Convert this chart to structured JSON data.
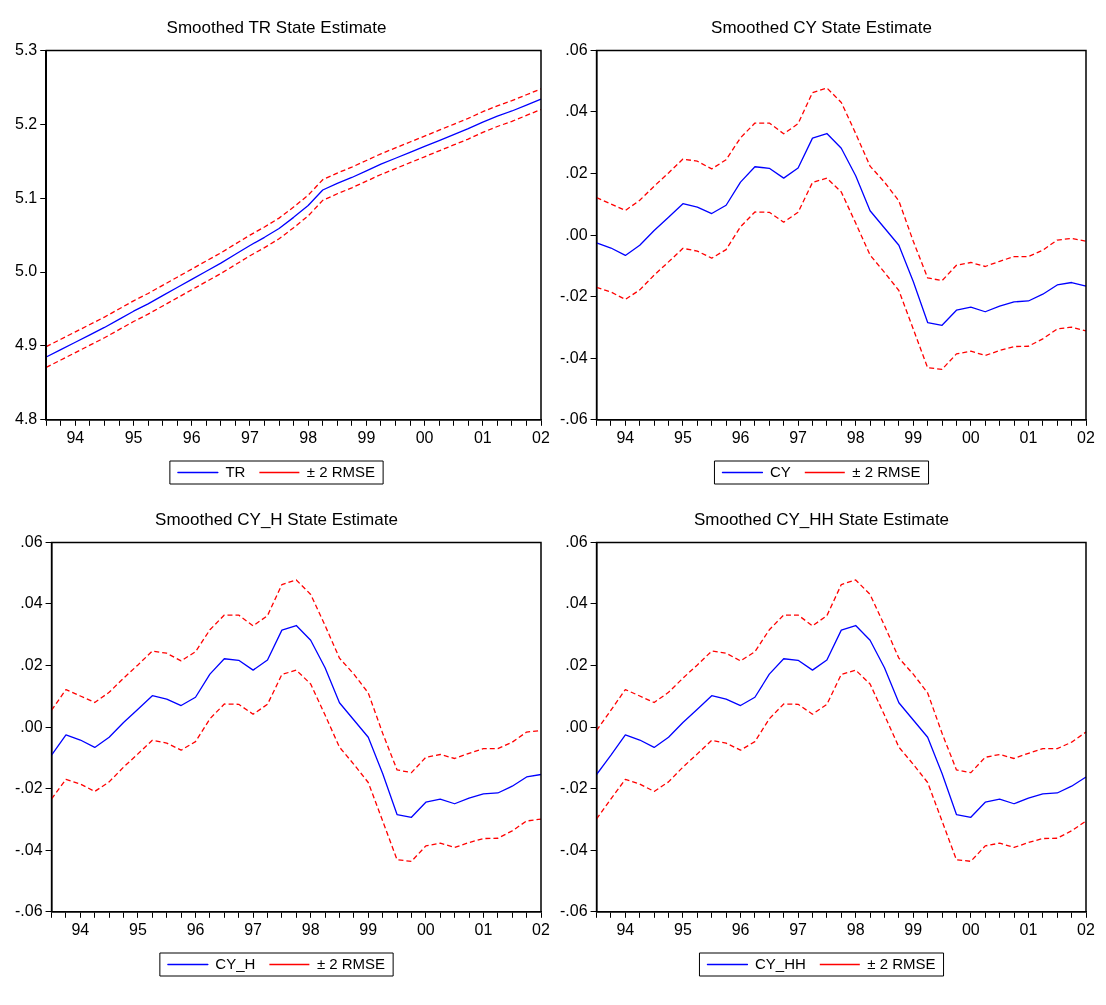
{
  "chart_data": [
    {
      "type": "line",
      "title": "Smoothed TR State Estimate",
      "categories": [
        null,
        null,
        "94",
        null,
        null,
        null,
        "95",
        null,
        null,
        null,
        "96",
        null,
        null,
        null,
        "97",
        null,
        null,
        null,
        "98",
        null,
        null,
        null,
        "99",
        null,
        null,
        null,
        "00",
        null,
        null,
        null,
        "01",
        null,
        null,
        null,
        "02"
      ],
      "series": [
        {
          "name": "TR",
          "color": "#0000ff",
          "line_style": "solid",
          "values": [
            4.885,
            4.895,
            4.905,
            4.915,
            4.925,
            4.936,
            4.947,
            4.957,
            4.968,
            4.979,
            4.99,
            5.001,
            5.012,
            5.024,
            5.036,
            5.047,
            5.059,
            5.074,
            5.09,
            5.111,
            5.12,
            5.128,
            5.137,
            5.146,
            5.154,
            5.162,
            5.17,
            5.178,
            5.186,
            5.194,
            5.203,
            5.211,
            5.218,
            5.226,
            5.234
          ]
        },
        {
          "name": "± 2 RMSE",
          "color": "#ff0000",
          "line_style": "dashed",
          "values": [
            4.899,
            4.909,
            4.919,
            4.929,
            4.939,
            4.95,
            4.961,
            4.971,
            4.982,
            4.993,
            5.004,
            5.015,
            5.026,
            5.038,
            5.05,
            5.061,
            5.073,
            5.088,
            5.104,
            5.125,
            5.134,
            5.142,
            5.151,
            5.16,
            5.168,
            5.176,
            5.184,
            5.192,
            5.2,
            5.208,
            5.217,
            5.225,
            5.232,
            5.24,
            5.248
          ]
        },
        {
          "color": "#ff0000",
          "line_style": "dashed",
          "values": [
            4.871,
            4.881,
            4.891,
            4.901,
            4.911,
            4.922,
            4.933,
            4.943,
            4.954,
            4.965,
            4.976,
            4.987,
            4.998,
            5.01,
            5.022,
            5.033,
            5.045,
            5.06,
            5.076,
            5.097,
            5.106,
            5.114,
            5.123,
            5.132,
            5.14,
            5.148,
            5.156,
            5.164,
            5.172,
            5.18,
            5.189,
            5.197,
            5.204,
            5.212,
            5.22
          ]
        }
      ],
      "ylim": [
        4.8,
        5.3
      ],
      "yticks": [
        {
          "value": 4.8,
          "label": "4.8"
        },
        {
          "value": 4.9,
          "label": "4.9"
        },
        {
          "value": 5,
          "label": "5.0"
        },
        {
          "value": 5.1,
          "label": "5.1"
        },
        {
          "value": 5.2,
          "label": "5.2"
        },
        {
          "value": 5.3,
          "label": "5.3"
        }
      ],
      "grid": false,
      "legend": "bottom",
      "marker": "none"
    },
    {
      "type": "line",
      "title": "Smoothed CY State Estimate",
      "categories": [
        null,
        null,
        "94",
        null,
        null,
        null,
        "95",
        null,
        null,
        null,
        "96",
        null,
        null,
        null,
        "97",
        null,
        null,
        null,
        "98",
        null,
        null,
        null,
        "99",
        null,
        null,
        null,
        "00",
        null,
        null,
        null,
        "01",
        null,
        null,
        null,
        "02"
      ],
      "series": [
        {
          "name": "CY",
          "color": "#0000ff",
          "line_style": "solid",
          "values": [
            -0.0025,
            -0.0042,
            -0.0066,
            -0.0033,
            0.0015,
            0.0058,
            0.0102,
            0.0091,
            0.007,
            0.0097,
            0.0172,
            0.0222,
            0.0217,
            0.0185,
            0.0218,
            0.0315,
            0.033,
            0.0282,
            0.0193,
            0.0079,
            0.0023,
            -0.0033,
            -0.0151,
            -0.0284,
            -0.0293,
            -0.0244,
            -0.0234,
            -0.0249,
            -0.0231,
            -0.0217,
            -0.0214,
            -0.0192,
            -0.0162,
            -0.0154,
            -0.0166
          ]
        },
        {
          "name": "± 2 RMSE",
          "color": "#ff0000",
          "line_style": "dashed",
          "values": [
            0.0122,
            0.0101,
            0.008,
            0.0113,
            0.0159,
            0.0202,
            0.0247,
            0.024,
            0.0215,
            0.0245,
            0.0316,
            0.0364,
            0.0364,
            0.0329,
            0.0362,
            0.0463,
            0.0478,
            0.0431,
            0.033,
            0.0224,
            0.0172,
            0.0111,
            -0.002,
            -0.0139,
            -0.0148,
            -0.0098,
            -0.0089,
            -0.0102,
            -0.0085,
            -0.007,
            -0.007,
            -0.0049,
            -0.0016,
            -0.0011,
            -0.002
          ]
        },
        {
          "color": "#ff0000",
          "line_style": "dashed",
          "values": [
            -0.017,
            -0.0185,
            -0.0209,
            -0.0178,
            -0.013,
            -0.0087,
            -0.0043,
            -0.0052,
            -0.0075,
            -0.0047,
            0.0027,
            0.0075,
            0.0074,
            0.0042,
            0.0074,
            0.0171,
            0.0185,
            0.014,
            0.0039,
            -0.0065,
            -0.0121,
            -0.018,
            -0.0305,
            -0.0431,
            -0.0436,
            -0.0386,
            -0.0377,
            -0.0391,
            -0.0375,
            -0.0362,
            -0.0361,
            -0.0337,
            -0.0305,
            -0.0299,
            -0.0311
          ]
        }
      ],
      "ylim": [
        -0.06,
        0.06
      ],
      "yticks": [
        {
          "value": -0.06,
          "label": "-.06"
        },
        {
          "value": -0.04,
          "label": "-.04"
        },
        {
          "value": -0.02,
          "label": "-.02"
        },
        {
          "value": 0,
          "label": ".00"
        },
        {
          "value": 0.02,
          "label": ".02"
        },
        {
          "value": 0.04,
          "label": ".04"
        },
        {
          "value": 0.06,
          "label": ".06"
        }
      ],
      "grid": false,
      "legend": "bottom",
      "marker": "none"
    },
    {
      "type": "line",
      "title": "Smoothed CY_H State Estimate",
      "categories": [
        null,
        null,
        "94",
        null,
        null,
        null,
        "95",
        null,
        null,
        null,
        "96",
        null,
        null,
        null,
        "97",
        null,
        null,
        null,
        "98",
        null,
        null,
        null,
        "99",
        null,
        null,
        null,
        "00",
        null,
        null,
        null,
        "01",
        null,
        null,
        null,
        "02"
      ],
      "series": [
        {
          "name": "CY_H",
          "color": "#0000ff",
          "line_style": "solid",
          "values": [
            -0.0091,
            -0.0025,
            -0.0042,
            -0.0066,
            -0.0033,
            0.0015,
            0.0058,
            0.0102,
            0.0091,
            0.007,
            0.0097,
            0.0172,
            0.0222,
            0.0217,
            0.0185,
            0.0218,
            0.0315,
            0.033,
            0.0282,
            0.0193,
            0.0079,
            0.0023,
            -0.0033,
            -0.0151,
            -0.0284,
            -0.0293,
            -0.0244,
            -0.0234,
            -0.0249,
            -0.0231,
            -0.0217,
            -0.0214,
            -0.0192,
            -0.0162,
            -0.0154
          ]
        },
        {
          "name": "± 2 RMSE",
          "color": "#ff0000",
          "line_style": "dashed",
          "values": [
            0.0055,
            0.0122,
            0.0101,
            0.008,
            0.0113,
            0.0159,
            0.0202,
            0.0247,
            0.024,
            0.0215,
            0.0245,
            0.0316,
            0.0364,
            0.0364,
            0.0329,
            0.0362,
            0.0463,
            0.0478,
            0.0431,
            0.033,
            0.0224,
            0.0172,
            0.0111,
            -0.002,
            -0.0139,
            -0.0148,
            -0.0098,
            -0.0089,
            -0.0102,
            -0.0085,
            -0.007,
            -0.007,
            -0.0049,
            -0.0016,
            -0.0011
          ]
        },
        {
          "color": "#ff0000",
          "line_style": "dashed",
          "values": [
            -0.0233,
            -0.017,
            -0.0185,
            -0.0209,
            -0.0178,
            -0.013,
            -0.0087,
            -0.0043,
            -0.0052,
            -0.0075,
            -0.0047,
            0.0027,
            0.0075,
            0.0074,
            0.0042,
            0.0074,
            0.0171,
            0.0185,
            0.014,
            0.0039,
            -0.0065,
            -0.0121,
            -0.018,
            -0.0305,
            -0.0431,
            -0.0436,
            -0.0386,
            -0.0377,
            -0.0391,
            -0.0375,
            -0.0362,
            -0.0361,
            -0.0337,
            -0.0305,
            -0.0299
          ]
        }
      ],
      "ylim": [
        -0.06,
        0.06
      ],
      "yticks": [
        {
          "value": -0.06,
          "label": "-.06"
        },
        {
          "value": -0.04,
          "label": "-.04"
        },
        {
          "value": -0.02,
          "label": "-.02"
        },
        {
          "value": 0,
          "label": ".00"
        },
        {
          "value": 0.02,
          "label": ".02"
        },
        {
          "value": 0.04,
          "label": ".04"
        },
        {
          "value": 0.06,
          "label": ".06"
        }
      ],
      "grid": false,
      "legend": "bottom",
      "marker": "none"
    },
    {
      "type": "line",
      "title": "Smoothed CY_HH State Estimate",
      "categories": [
        null,
        null,
        "94",
        null,
        null,
        null,
        "95",
        null,
        null,
        null,
        "96",
        null,
        null,
        null,
        "97",
        null,
        null,
        null,
        "98",
        null,
        null,
        null,
        "99",
        null,
        null,
        null,
        "00",
        null,
        null,
        null,
        "01",
        null,
        null,
        null,
        "02"
      ],
      "series": [
        {
          "name": "CY_HH",
          "color": "#0000ff",
          "line_style": "solid",
          "values": [
            -0.0154,
            -0.0091,
            -0.0025,
            -0.0042,
            -0.0066,
            -0.0033,
            0.0015,
            0.0058,
            0.0102,
            0.0091,
            0.007,
            0.0097,
            0.0172,
            0.0222,
            0.0217,
            0.0185,
            0.0218,
            0.0315,
            0.033,
            0.0282,
            0.0193,
            0.0079,
            0.0023,
            -0.0033,
            -0.0151,
            -0.0284,
            -0.0293,
            -0.0244,
            -0.0234,
            -0.0249,
            -0.0231,
            -0.0217,
            -0.0214,
            -0.0192,
            -0.0162
          ]
        },
        {
          "name": "± 2 RMSE",
          "color": "#ff0000",
          "line_style": "dashed",
          "values": [
            -0.0011,
            0.0055,
            0.0122,
            0.0101,
            0.008,
            0.0113,
            0.0159,
            0.0202,
            0.0247,
            0.024,
            0.0215,
            0.0245,
            0.0316,
            0.0364,
            0.0364,
            0.0329,
            0.0362,
            0.0463,
            0.0478,
            0.0431,
            0.033,
            0.0224,
            0.0172,
            0.0111,
            -0.002,
            -0.0139,
            -0.0148,
            -0.0098,
            -0.0089,
            -0.0102,
            -0.0085,
            -0.007,
            -0.007,
            -0.0049,
            -0.0016
          ]
        },
        {
          "color": "#ff0000",
          "line_style": "dashed",
          "values": [
            -0.0298,
            -0.0233,
            -0.017,
            -0.0185,
            -0.0209,
            -0.0178,
            -0.013,
            -0.0087,
            -0.0043,
            -0.0052,
            -0.0075,
            -0.0047,
            0.0027,
            0.0075,
            0.0074,
            0.0042,
            0.0074,
            0.0171,
            0.0185,
            0.014,
            0.0039,
            -0.0065,
            -0.0121,
            -0.018,
            -0.0305,
            -0.0431,
            -0.0436,
            -0.0386,
            -0.0377,
            -0.0391,
            -0.0375,
            -0.0362,
            -0.0361,
            -0.0337,
            -0.0305
          ]
        }
      ],
      "ylim": [
        -0.06,
        0.06
      ],
      "yticks": [
        {
          "value": -0.06,
          "label": "-.06"
        },
        {
          "value": -0.04,
          "label": "-.04"
        },
        {
          "value": -0.02,
          "label": "-.02"
        },
        {
          "value": 0,
          "label": ".00"
        },
        {
          "value": 0.02,
          "label": ".02"
        },
        {
          "value": 0.04,
          "label": ".04"
        },
        {
          "value": 0.06,
          "label": ".06"
        }
      ],
      "grid": false,
      "legend": "bottom",
      "marker": "none"
    }
  ]
}
